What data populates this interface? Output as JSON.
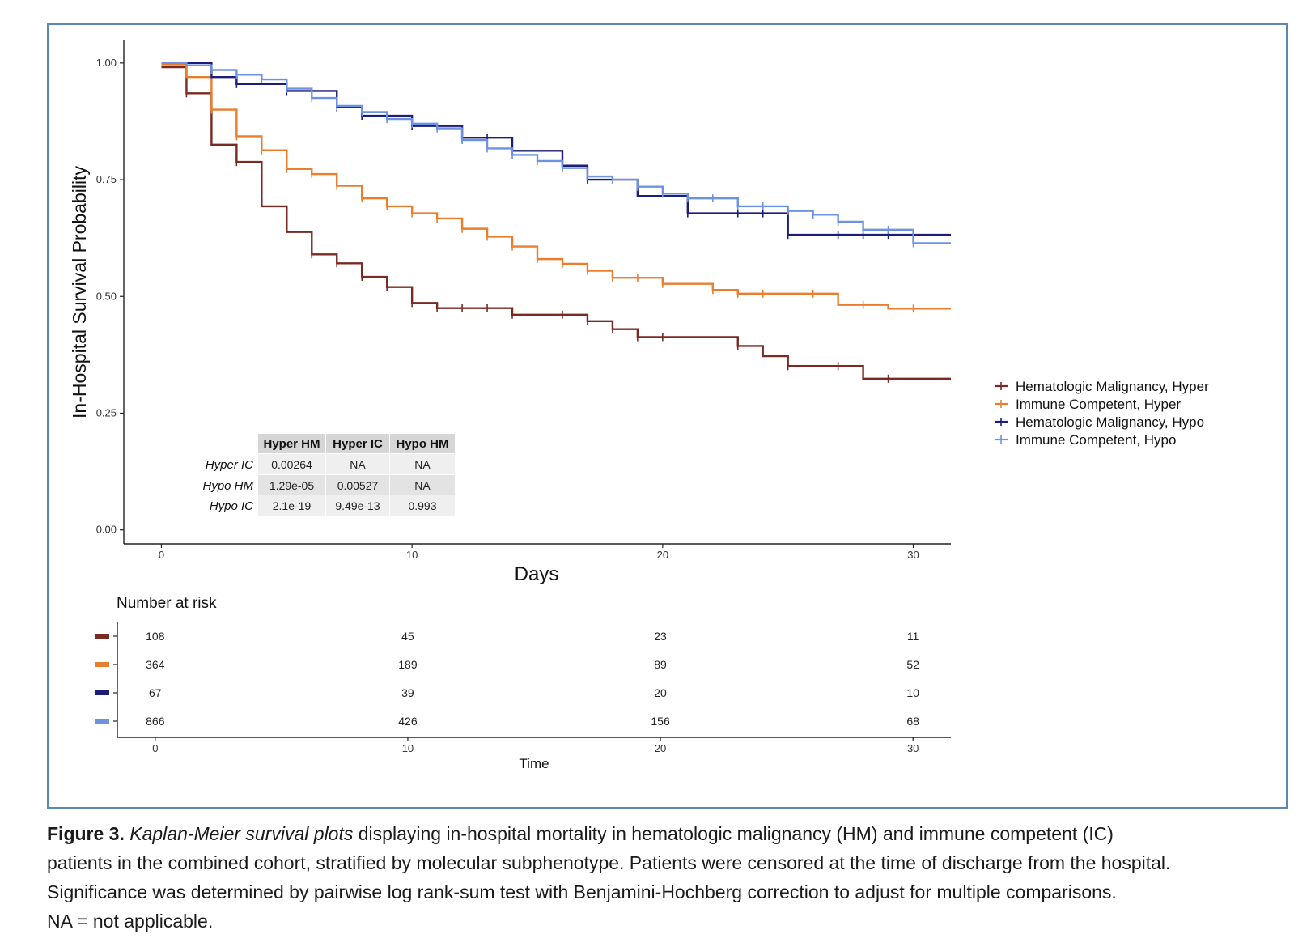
{
  "chart_data": {
    "type": "line",
    "subtype": "kaplan-meier-step",
    "xlabel": "Days",
    "ylabel": "In-Hospital Survival Probability",
    "xlim": [
      -1.5,
      31.5
    ],
    "ylim": [
      -0.03,
      1.05
    ],
    "x_ticks": [
      0,
      10,
      20,
      30
    ],
    "x_tick_labels": [
      "0",
      "10",
      "20",
      "30"
    ],
    "y_ticks": [
      0.0,
      0.25,
      0.5,
      0.75,
      1.0
    ],
    "y_tick_labels": [
      "0.00",
      "0.25",
      "0.50",
      "0.75",
      "1.00"
    ],
    "grid": false,
    "legend_position": "right",
    "series": [
      {
        "name": "Hematologic Malignancy, Hyper",
        "color": "#7b2a22",
        "steps": [
          [
            0,
            0.991
          ],
          [
            1,
            0.935
          ],
          [
            2,
            0.825
          ],
          [
            3,
            0.788
          ],
          [
            4,
            0.693
          ],
          [
            5,
            0.638
          ],
          [
            6,
            0.59
          ],
          [
            7,
            0.571
          ],
          [
            8,
            0.542
          ],
          [
            9,
            0.52
          ],
          [
            10,
            0.486
          ],
          [
            11,
            0.475
          ],
          [
            14,
            0.461
          ],
          [
            17,
            0.447
          ],
          [
            18,
            0.43
          ],
          [
            19,
            0.413
          ],
          [
            23,
            0.394
          ],
          [
            24,
            0.372
          ],
          [
            25,
            0.351
          ],
          [
            28,
            0.324
          ],
          [
            31.5,
            0.324
          ]
        ],
        "censor_times": [
          1,
          3,
          6,
          7,
          8,
          9,
          10,
          11,
          12,
          13,
          14,
          16,
          17,
          18,
          19,
          20,
          23,
          25,
          27,
          29
        ]
      },
      {
        "name": "Immune Competent, Hyper",
        "color": "#ea7e2f",
        "steps": [
          [
            0,
            0.997
          ],
          [
            1,
            0.97
          ],
          [
            2,
            0.9
          ],
          [
            3,
            0.843
          ],
          [
            4,
            0.813
          ],
          [
            5,
            0.773
          ],
          [
            6,
            0.762
          ],
          [
            7,
            0.737
          ],
          [
            8,
            0.71
          ],
          [
            9,
            0.693
          ],
          [
            10,
            0.678
          ],
          [
            11,
            0.667
          ],
          [
            12,
            0.645
          ],
          [
            13,
            0.628
          ],
          [
            14,
            0.607
          ],
          [
            15,
            0.58
          ],
          [
            16,
            0.57
          ],
          [
            17,
            0.555
          ],
          [
            18,
            0.54
          ],
          [
            20,
            0.527
          ],
          [
            22,
            0.514
          ],
          [
            23,
            0.506
          ],
          [
            27,
            0.482
          ],
          [
            29,
            0.474
          ],
          [
            31.5,
            0.474
          ]
        ],
        "censor_times": [
          2,
          3,
          4,
          5,
          6,
          7,
          8,
          9,
          10,
          11,
          12,
          13,
          14,
          15,
          16,
          17,
          18,
          19,
          20,
          22,
          23,
          24,
          26,
          28,
          30
        ]
      },
      {
        "name": "Hematologic Malignancy, Hypo",
        "color": "#1c1d78",
        "steps": [
          [
            0,
            1.0
          ],
          [
            2,
            0.97
          ],
          [
            3,
            0.955
          ],
          [
            5,
            0.94
          ],
          [
            7,
            0.905
          ],
          [
            8,
            0.887
          ],
          [
            10,
            0.865
          ],
          [
            12,
            0.84
          ],
          [
            14,
            0.812
          ],
          [
            16,
            0.78
          ],
          [
            17,
            0.75
          ],
          [
            19,
            0.715
          ],
          [
            21,
            0.678
          ],
          [
            25,
            0.632
          ],
          [
            31.5,
            0.632
          ]
        ],
        "censor_times": [
          3,
          5,
          7,
          8,
          9,
          10,
          12,
          13,
          14,
          17,
          21,
          23,
          24,
          25,
          27,
          28,
          29
        ]
      },
      {
        "name": "Immune Competent, Hypo",
        "color": "#6d93e0",
        "steps": [
          [
            0,
            1.0
          ],
          [
            1,
            0.995
          ],
          [
            2,
            0.985
          ],
          [
            3,
            0.975
          ],
          [
            4,
            0.965
          ],
          [
            5,
            0.945
          ],
          [
            6,
            0.925
          ],
          [
            7,
            0.908
          ],
          [
            8,
            0.895
          ],
          [
            9,
            0.88
          ],
          [
            10,
            0.87
          ],
          [
            11,
            0.86
          ],
          [
            12,
            0.835
          ],
          [
            13,
            0.817
          ],
          [
            14,
            0.803
          ],
          [
            15,
            0.79
          ],
          [
            16,
            0.775
          ],
          [
            17,
            0.757
          ],
          [
            18,
            0.75
          ],
          [
            19,
            0.735
          ],
          [
            20,
            0.72
          ],
          [
            21,
            0.71
          ],
          [
            23,
            0.693
          ],
          [
            25,
            0.683
          ],
          [
            26,
            0.675
          ],
          [
            27,
            0.66
          ],
          [
            28,
            0.643
          ],
          [
            30,
            0.614
          ],
          [
            31.5,
            0.614
          ]
        ],
        "censor_times": [
          2,
          3,
          4,
          5,
          6,
          7,
          8,
          9,
          10,
          11,
          12,
          13,
          14,
          15,
          16,
          17,
          18,
          19,
          20,
          21,
          22,
          23,
          24,
          25,
          26,
          27,
          28,
          29,
          30
        ]
      }
    ],
    "pvalue_table": {
      "col_headers": [
        "Hyper HM",
        "Hyper IC",
        "Hypo HM"
      ],
      "rows": [
        {
          "label": "Hyper IC",
          "values": [
            "0.00264",
            "NA",
            "NA"
          ]
        },
        {
          "label": "Hypo HM",
          "values": [
            "1.29e-05",
            "0.00527",
            "NA"
          ]
        },
        {
          "label": "Hypo IC",
          "values": [
            "2.1e-19",
            "9.49e-13",
            "0.993"
          ]
        }
      ]
    },
    "risk_table": {
      "title": "Number at risk",
      "xlabel": "Time",
      "times": [
        0,
        10,
        20,
        30
      ],
      "time_labels": [
        "0",
        "10",
        "20",
        "30"
      ],
      "rows": [
        {
          "color": "#7b2a22",
          "values": [
            "108",
            "45",
            "23",
            "11"
          ]
        },
        {
          "color": "#ea7e2f",
          "values": [
            "364",
            "189",
            "89",
            "52"
          ]
        },
        {
          "color": "#1c1d78",
          "values": [
            "67",
            "39",
            "20",
            "10"
          ]
        },
        {
          "color": "#6d93e0",
          "values": [
            "866",
            "426",
            "156",
            "68"
          ]
        }
      ]
    }
  },
  "caption": {
    "fig_label": "Figure 3.",
    "fig_title": "Kaplan-Meier survival plots",
    "line1_rest": " displaying in-hospital mortality in hematologic malignancy (HM) and immune competent (IC)",
    "line2": "patients in the combined cohort, stratified by molecular subphenotype. Patients were censored at the time of discharge from the hospital.",
    "line3": "Significance was determined by pairwise log rank-sum test with Benjamini-Hochberg correction to adjust for multiple comparisons.",
    "line4": "NA = not applicable."
  }
}
